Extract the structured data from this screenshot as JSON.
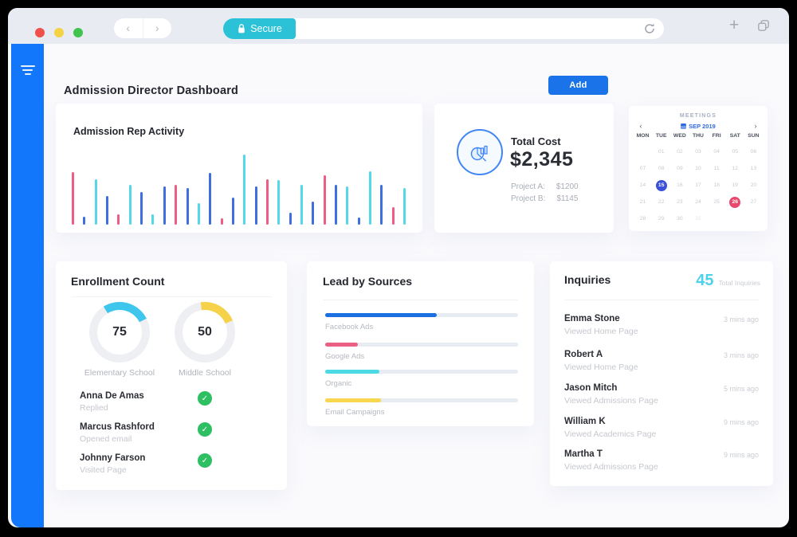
{
  "browser": {
    "back_glyph": "‹",
    "forward_glyph": "›",
    "secure_label": "Secure",
    "url_value": "",
    "new_tab_glyph": "+"
  },
  "header": {
    "title": "Admission Director Dashboard",
    "add_label": "Add"
  },
  "total_cost": {
    "label": "Total Cost",
    "value": "$2,345",
    "breakdown": [
      {
        "label": "Project A:",
        "value": "$1200"
      },
      {
        "label": "Project B:",
        "value": "$1145"
      }
    ]
  },
  "calendar": {
    "header": "MEETINGS",
    "month": "SEP 2019",
    "prev_glyph": "‹",
    "next_glyph": "›",
    "weekdays": [
      "MON",
      "TUE",
      "WED",
      "THU",
      "FRI",
      "SAT",
      "SUN"
    ],
    "rows": [
      [
        "",
        "01",
        "02",
        "03",
        "04",
        "05",
        "06"
      ],
      [
        "07",
        "08",
        "09",
        "10",
        "11",
        "12",
        "13"
      ],
      [
        "14",
        "15",
        "16",
        "17",
        "18",
        "19",
        "20"
      ],
      [
        "21",
        "22",
        "23",
        "24",
        "25",
        "26",
        "27"
      ],
      [
        "28",
        "29",
        "30",
        "31",
        "",
        "",
        ""
      ]
    ],
    "selected_date": "15",
    "event_date": "26",
    "muted_dates": [
      "31"
    ],
    "selected_color": "#3a50d9",
    "event_color": "#e8486e"
  },
  "enrollment": {
    "title": "Enrollment Count",
    "people": [
      {
        "name": "Anna De Amas",
        "status": "Replied"
      },
      {
        "name": "Marcus Rashford",
        "status": "Opened email"
      },
      {
        "name": "Johnny Farson",
        "status": "Visited Page"
      }
    ],
    "check_glyph": "✓",
    "check_color": "#2dbf61"
  },
  "lead_sources": {
    "title": "Lead by Sources"
  },
  "inquiries": {
    "title": "Inquiries",
    "count": "45",
    "count_label": "Total Inquiries",
    "items": [
      {
        "name": "Emma Stone",
        "action": "Viewed Home Page",
        "time": "3 mins ago"
      },
      {
        "name": "Robert A",
        "action": "Viewed Home Page",
        "time": "3 mins ago"
      },
      {
        "name": "Jason Mitch",
        "action": "Viewed Admissions Page",
        "time": "5 mins ago"
      },
      {
        "name": "William K",
        "action": "Viewed Academics Page",
        "time": "9 mins ago"
      },
      {
        "name": "Martha T",
        "action": "Viewed Admissions Page",
        "time": "9 mins ago"
      }
    ]
  },
  "colors": {
    "sidebar_blue": "#1277fb",
    "accent_blue": "#1a73e8",
    "secure_cyan": "#2bc2d8",
    "success_green": "#2dbf61",
    "count_cyan": "#4ed1ea"
  },
  "chart_data": [
    {
      "id": "admission-rep-activity",
      "type": "bar",
      "title": "Admission Rep Activity",
      "values": [
        66,
        10,
        57,
        36,
        13,
        50,
        41,
        13,
        48,
        50,
        46,
        27,
        65,
        8,
        34,
        88,
        48,
        57,
        56,
        15,
        50,
        29,
        62,
        50,
        48,
        9,
        67,
        50,
        22,
        46
      ],
      "colors": [
        "pink",
        "blue",
        "cyan",
        "blue",
        "pink",
        "cyan",
        "blue",
        "cyan",
        "blue",
        "pink",
        "blue",
        "cyan",
        "blue",
        "pink",
        "blue",
        "cyan",
        "blue",
        "pink",
        "cyan",
        "blue",
        "cyan",
        "blue",
        "pink",
        "blue",
        "cyan",
        "blue",
        "cyan",
        "blue",
        "pink",
        "cyan"
      ],
      "palette": {
        "pink": "#ef5d85",
        "blue": "#3e6ee0",
        "cyan": "#54d8e9"
      },
      "ylim": [
        0,
        100
      ],
      "axes_hidden": true
    },
    {
      "id": "enrollment-count",
      "type": "donut",
      "track_color": "#edeff3",
      "items": [
        {
          "value": "75",
          "label": "Elementary School",
          "color": "#3fc6ec",
          "arc_start_deg": -32,
          "arc_sweep_deg": 95
        },
        {
          "value": "50",
          "label": "Middle School",
          "color": "#f6d24a",
          "arc_start_deg": -8,
          "arc_sweep_deg": 75
        }
      ]
    },
    {
      "id": "lead-by-sources",
      "type": "bar",
      "orientation": "horizontal",
      "categories": [
        "Facebook Ads",
        "Google Ads",
        "Organic",
        "Email Campaigns"
      ],
      "values_pct": [
        58,
        17,
        28,
        29
      ],
      "colors": [
        "#1b6fe0",
        "#ec5f84",
        "#4dd9e3",
        "#f8d64e"
      ],
      "track_color": "#e7ebf2"
    }
  ]
}
